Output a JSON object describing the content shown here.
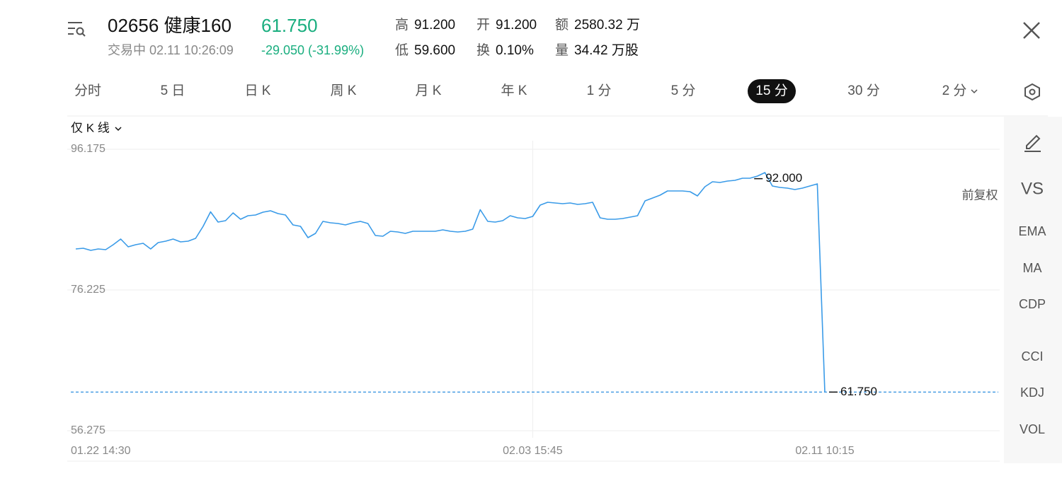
{
  "header": {
    "code_name": "02656 健康160",
    "price": "61.750",
    "status": "交易中 02.11 10:26:09",
    "change": "-29.050 (-31.99%)",
    "stats": [
      {
        "label": "高",
        "value": "91.200"
      },
      {
        "label": "开",
        "value": "91.200"
      },
      {
        "label": "额",
        "value": "2580.32 万"
      },
      {
        "label": "低",
        "value": "59.600"
      },
      {
        "label": "换",
        "value": "0.10%"
      },
      {
        "label": "量",
        "value": "34.42 万股"
      }
    ]
  },
  "tabs": [
    "分时",
    "5 日",
    "日 K",
    "周 K",
    "月 K",
    "年 K",
    "1 分",
    "5 分",
    "15 分",
    "30 分",
    "2 分"
  ],
  "active_tab": 8,
  "chart_mode": "仅 K 线",
  "adjust": "前复权",
  "side_tools": [
    "VS",
    "EMA",
    "MA",
    "CDP",
    "CCI",
    "KDJ",
    "VOL"
  ],
  "chart_data": {
    "type": "line",
    "color": "#3a9be8",
    "categories": [
      "01.22 14:30",
      null,
      null,
      null,
      null,
      null,
      null,
      null,
      null,
      null,
      null,
      null,
      null,
      null,
      null,
      null,
      null,
      null,
      null,
      null,
      null,
      null,
      null,
      null,
      null,
      null,
      null,
      null,
      null,
      null,
      null,
      null,
      null,
      null,
      null,
      null,
      null,
      null,
      null,
      null,
      null,
      null,
      null,
      null,
      null,
      null,
      null,
      null,
      null,
      null,
      null,
      null,
      null,
      null,
      null,
      null,
      null,
      null,
      null,
      null,
      null,
      "02.03 15:45",
      null,
      null,
      null,
      null,
      null,
      null,
      null,
      null,
      null,
      null,
      null,
      null,
      null,
      null,
      null,
      null,
      null,
      null,
      null,
      null,
      null,
      null,
      null,
      null,
      null,
      null,
      null,
      null,
      null,
      null,
      null,
      null,
      null,
      null,
      null,
      null,
      null,
      null,
      "02.11 10:15"
    ],
    "values": [
      82.04,
      82.14,
      81.84,
      82.04,
      81.94,
      82.64,
      83.44,
      82.34,
      82.64,
      82.84,
      82.04,
      82.94,
      83.14,
      83.44,
      83.04,
      83.14,
      83.54,
      85.25,
      87.3,
      85.85,
      86.05,
      87.15,
      86.25,
      86.75,
      86.85,
      87.25,
      87.45,
      87.05,
      86.85,
      85.45,
      85.25,
      83.64,
      84.25,
      85.95,
      85.75,
      85.65,
      85.45,
      85.75,
      85.95,
      85.65,
      83.94,
      83.84,
      84.55,
      84.45,
      84.25,
      84.55,
      84.55,
      84.55,
      84.55,
      84.75,
      84.55,
      84.45,
      84.55,
      84.85,
      87.6,
      85.95,
      85.85,
      86.05,
      86.75,
      86.45,
      86.35,
      86.65,
      88.26,
      88.66,
      88.56,
      88.46,
      88.56,
      88.36,
      88.46,
      88.66,
      86.45,
      86.25,
      86.25,
      86.35,
      86.55,
      86.75,
      88.86,
      89.26,
      89.66,
      90.26,
      90.26,
      90.26,
      90.16,
      89.56,
      90.86,
      91.56,
      91.46,
      91.66,
      91.76,
      92.06,
      92.06,
      92.37,
      92.87,
      90.96,
      90.76,
      90.66,
      90.46,
      90.66,
      90.96,
      91.26,
      61.75
    ],
    "ylim": [
      56.275,
      96.175
    ],
    "yticks": [
      {
        "value": 56.275,
        "label": "56.275"
      },
      {
        "value": 76.225,
        "label": "76.225"
      },
      {
        "value": 96.175,
        "label": "96.175"
      }
    ],
    "grid": true,
    "annotations": [
      {
        "value": 92,
        "label": "92.000",
        "dashed": false
      },
      {
        "value": 61.75,
        "label": "61.750",
        "dashed": true
      }
    ]
  }
}
